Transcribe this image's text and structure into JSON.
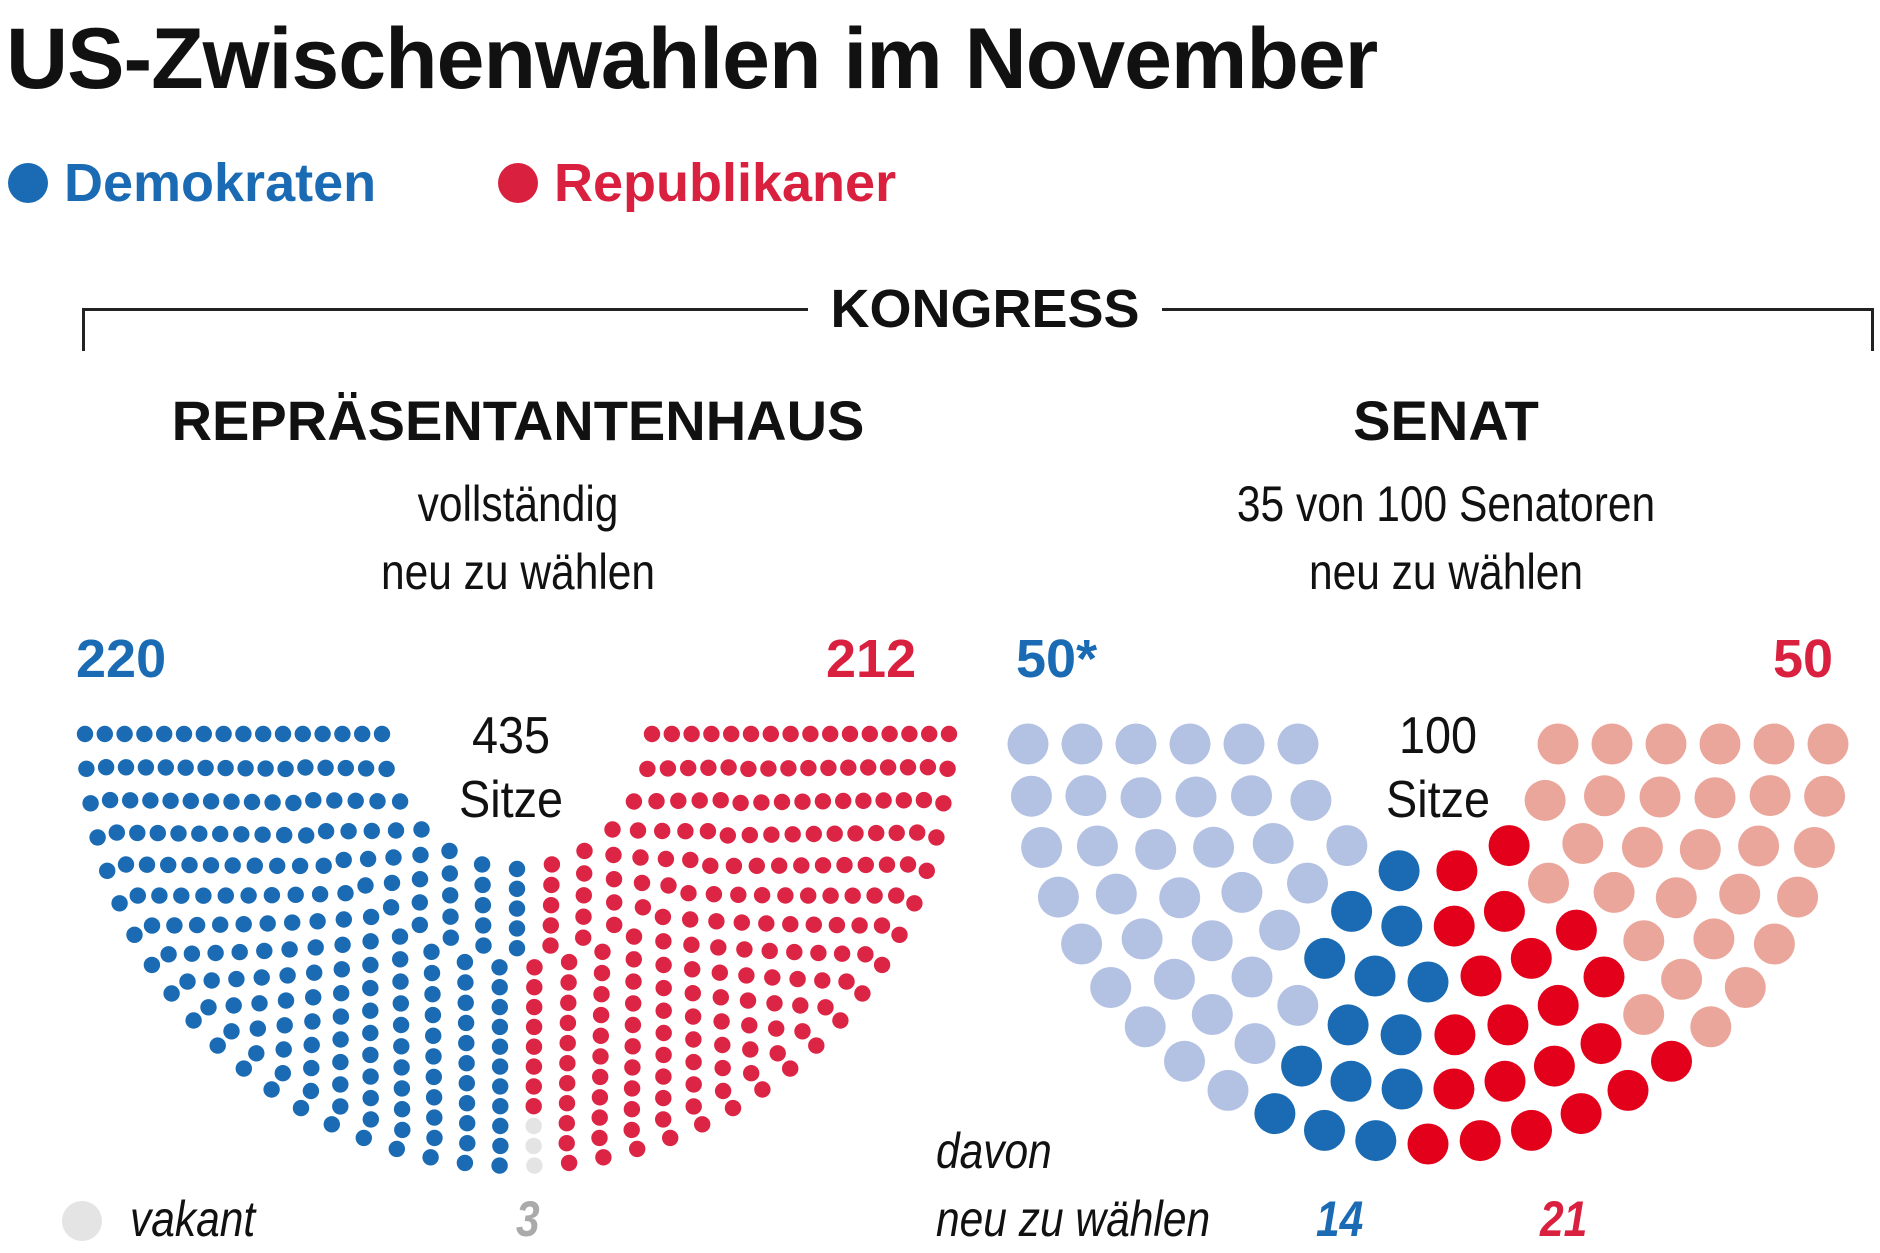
{
  "title": "US-Zwischenwahlen im November",
  "legend": [
    {
      "label": "Demokraten",
      "color": "#1a6bb3"
    },
    {
      "label": "Republikaner",
      "color": "#d9203f"
    }
  ],
  "section": "KONGRESS",
  "house": {
    "heading": "REPRÄSENTANTENHAUS",
    "subtitle_1": "vollständig",
    "subtitle_2": "neu zu wählen",
    "dem_label": "220",
    "rep_label": "212",
    "total_number": "435",
    "total_unit": "Sitze",
    "vacant_label": "vakant",
    "vacant_count": "3"
  },
  "senate": {
    "heading": "SENAT",
    "subtitle_1": "35 von 100 Senatoren",
    "subtitle_2": "neu zu wählen",
    "dem_label": "50*",
    "rep_label": "50",
    "total_number": "100",
    "total_unit": "Sitze",
    "davon_1": "davon",
    "davon_2": "neu zu wählen",
    "dem_up_label": "14",
    "rep_up_label": "21"
  },
  "chart_data": [
    {
      "type": "parliament",
      "title": "REPRÄSENTANTENHAUS",
      "total": 435,
      "series": [
        {
          "name": "Demokraten",
          "value": 220,
          "color": "#1a6bb3"
        },
        {
          "name": "vakant",
          "value": 3,
          "color": "#e4e4e4"
        },
        {
          "name": "Republikaner",
          "value": 212,
          "color": "#dc2545"
        }
      ]
    },
    {
      "type": "parliament",
      "title": "SENAT",
      "total": 100,
      "series": [
        {
          "name": "Demokraten",
          "value": 36,
          "color": "#b3c1e3"
        },
        {
          "name": "Demokraten neu zu wählen",
          "value": 14,
          "color": "#1a6bb3"
        },
        {
          "name": "Republikaner neu zu wählen",
          "value": 21,
          "color": "#e3001b"
        },
        {
          "name": "Republikaner",
          "value": 29,
          "color": "#eba69c"
        }
      ]
    }
  ]
}
